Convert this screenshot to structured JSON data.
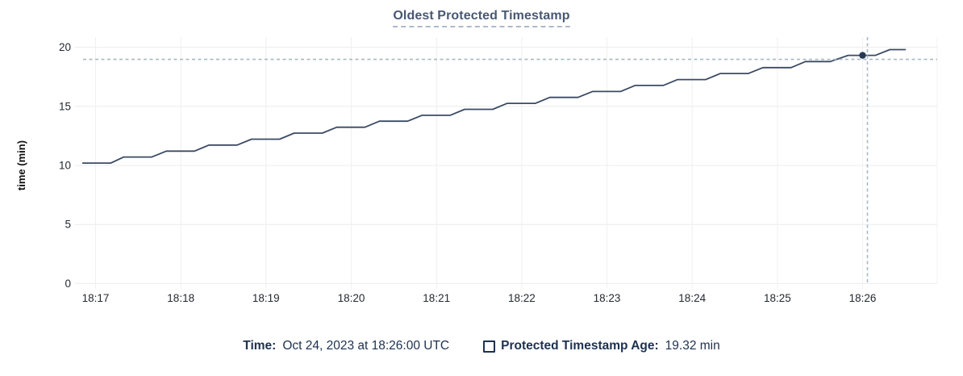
{
  "header": {
    "title": "Oldest Protected Timestamp"
  },
  "legend": {
    "time_label": "Time:",
    "time_value": "Oct 24, 2023 at 18:26:00 UTC",
    "series_checkbox_state": "unchecked",
    "series_label": "Protected Timestamp Age:",
    "series_value": "19.32 min"
  },
  "colors": {
    "title": "#475872",
    "title_underline": "#aeb9c8",
    "legend_text": "#1d3150",
    "tick_text": "#24292f",
    "line": "#3b4a64",
    "dot": "#243955",
    "crosshair": "#a6b9c6",
    "grid_h": "#ececec",
    "grid_v": "#f0f0f0"
  },
  "chart_data": {
    "type": "line",
    "title": "Oldest Protected Timestamp",
    "xlabel": "",
    "ylabel": "time (min)",
    "ylim": [
      0,
      20
    ],
    "yticks": [
      0,
      5,
      10,
      15,
      20
    ],
    "xtick_labels": [
      "18:17",
      "18:18",
      "18:19",
      "18:20",
      "18:21",
      "18:22",
      "18:23",
      "18:24",
      "18:25",
      "18:26"
    ],
    "x_unit": "minutes after 18:17 UTC",
    "xlim": [
      -0.24,
      9.87
    ],
    "grid": true,
    "legend_position": "bottom-center",
    "series": [
      {
        "name": "Protected Timestamp Age",
        "unit": "min",
        "style": "stepped-line",
        "points_minutes_value": [
          [
            -0.15,
            10.2
          ],
          [
            0.18,
            10.2
          ],
          [
            0.33,
            10.71
          ],
          [
            0.66,
            10.71
          ],
          [
            0.83,
            11.21
          ],
          [
            1.16,
            11.21
          ],
          [
            1.33,
            11.72
          ],
          [
            1.66,
            11.72
          ],
          [
            1.83,
            12.22
          ],
          [
            2.16,
            12.22
          ],
          [
            2.33,
            12.73
          ],
          [
            2.66,
            12.73
          ],
          [
            2.83,
            13.23
          ],
          [
            3.16,
            13.23
          ],
          [
            3.33,
            13.74
          ],
          [
            3.66,
            13.74
          ],
          [
            3.83,
            14.24
          ],
          [
            4.16,
            14.24
          ],
          [
            4.33,
            14.75
          ],
          [
            4.66,
            14.75
          ],
          [
            4.83,
            15.25
          ],
          [
            5.16,
            15.25
          ],
          [
            5.33,
            15.76
          ],
          [
            5.66,
            15.76
          ],
          [
            5.83,
            16.26
          ],
          [
            6.16,
            16.26
          ],
          [
            6.33,
            16.77
          ],
          [
            6.66,
            16.77
          ],
          [
            6.83,
            17.27
          ],
          [
            7.16,
            17.27
          ],
          [
            7.33,
            17.78
          ],
          [
            7.66,
            17.78
          ],
          [
            7.83,
            18.28
          ],
          [
            8.16,
            18.28
          ],
          [
            8.33,
            18.79
          ],
          [
            8.62,
            18.79
          ],
          [
            8.83,
            19.32
          ],
          [
            9.15,
            19.32
          ],
          [
            9.32,
            19.8
          ],
          [
            9.5,
            19.8
          ]
        ]
      }
    ],
    "hover_point": {
      "x_minutes": 9.0,
      "time_label": "18:26:00",
      "value_min": 19.32
    }
  }
}
